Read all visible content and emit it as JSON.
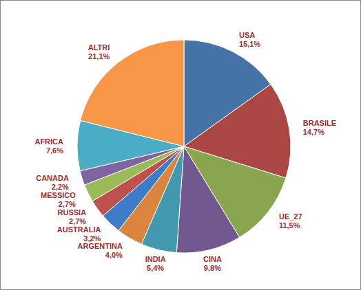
{
  "chart_data": {
    "type": "pie",
    "categories": [
      "USA",
      "BRASILE",
      "UE_27",
      "CINA",
      "INDIA",
      "ARGENTINA",
      "AUSTRALIA",
      "RUSSIA",
      "MESSICO",
      "CANADA",
      "AFRICA",
      "ALTRI"
    ],
    "values": [
      15.1,
      14.7,
      11.5,
      9.8,
      5.4,
      4.0,
      3.2,
      2.7,
      2.7,
      2.2,
      7.6,
      21.1
    ],
    "value_labels": [
      "15,1%",
      "14,7%",
      "11,5%",
      "9,8%",
      "5,4%",
      "4,0%",
      "3,2%",
      "2,7%",
      "2,7%",
      "2,2%",
      "7,6%",
      "21,1%"
    ],
    "colors": [
      "#4572A7",
      "#AA4643",
      "#89A54E",
      "#71588F",
      "#4198AF",
      "#DB843D",
      "#3D7CC9",
      "#C0504D",
      "#9BBB59",
      "#8064A2",
      "#4BACC6",
      "#F79646"
    ],
    "data_labels": true
  }
}
